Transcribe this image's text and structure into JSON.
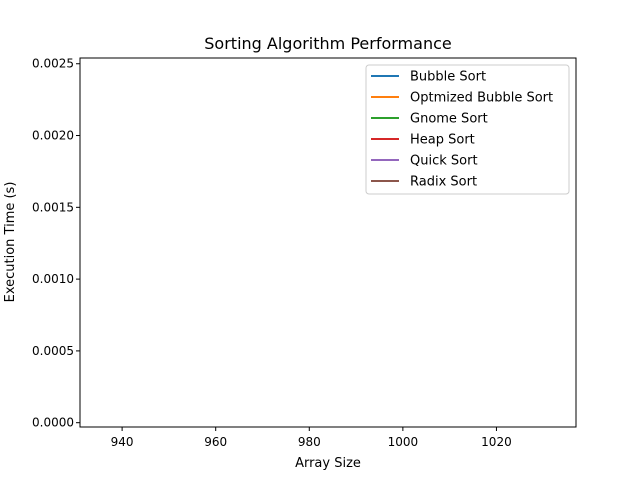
{
  "chart_data": {
    "type": "line",
    "title": "Sorting Algorithm Performance",
    "xlabel": "Array Size",
    "ylabel": "Execution Time (s)",
    "xlim": [
      931,
      1037
    ],
    "ylim": [
      -3e-05,
      0.00254
    ],
    "x_ticks": [
      940,
      960,
      980,
      1000,
      1020
    ],
    "x_tick_labels": [
      "940",
      "960",
      "980",
      "1000",
      "1020"
    ],
    "y_ticks": [
      0.0,
      0.0005,
      0.001,
      0.0015,
      0.002,
      0.0025
    ],
    "y_tick_labels": [
      "0.0000",
      "0.0005",
      "0.0010",
      "0.0015",
      "0.0020",
      "0.0025"
    ],
    "grid": false,
    "legend_position": "top-right",
    "series": [
      {
        "name": "Bubble Sort",
        "color": "#1f77b4",
        "x": [],
        "values": []
      },
      {
        "name": "Optmized Bubble Sort",
        "color": "#ff7f0e",
        "x": [],
        "values": []
      },
      {
        "name": "Gnome Sort",
        "color": "#2ca02c",
        "x": [],
        "values": []
      },
      {
        "name": "Heap Sort",
        "color": "#d62728",
        "x": [],
        "values": []
      },
      {
        "name": "Quick Sort",
        "color": "#9467bd",
        "x": [],
        "values": []
      },
      {
        "name": "Radix Sort",
        "color": "#8c564b",
        "x": [],
        "values": []
      }
    ]
  }
}
